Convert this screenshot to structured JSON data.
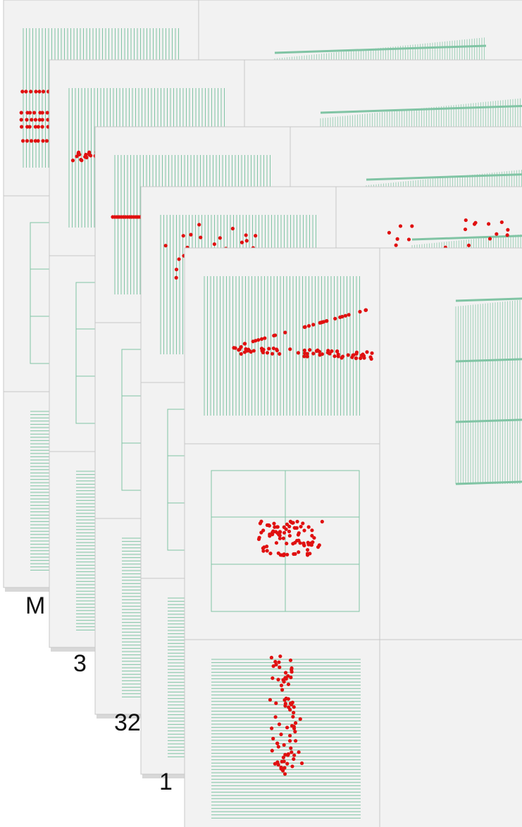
{
  "labels": [
    "M",
    "3",
    "32",
    "1"
  ]
}
